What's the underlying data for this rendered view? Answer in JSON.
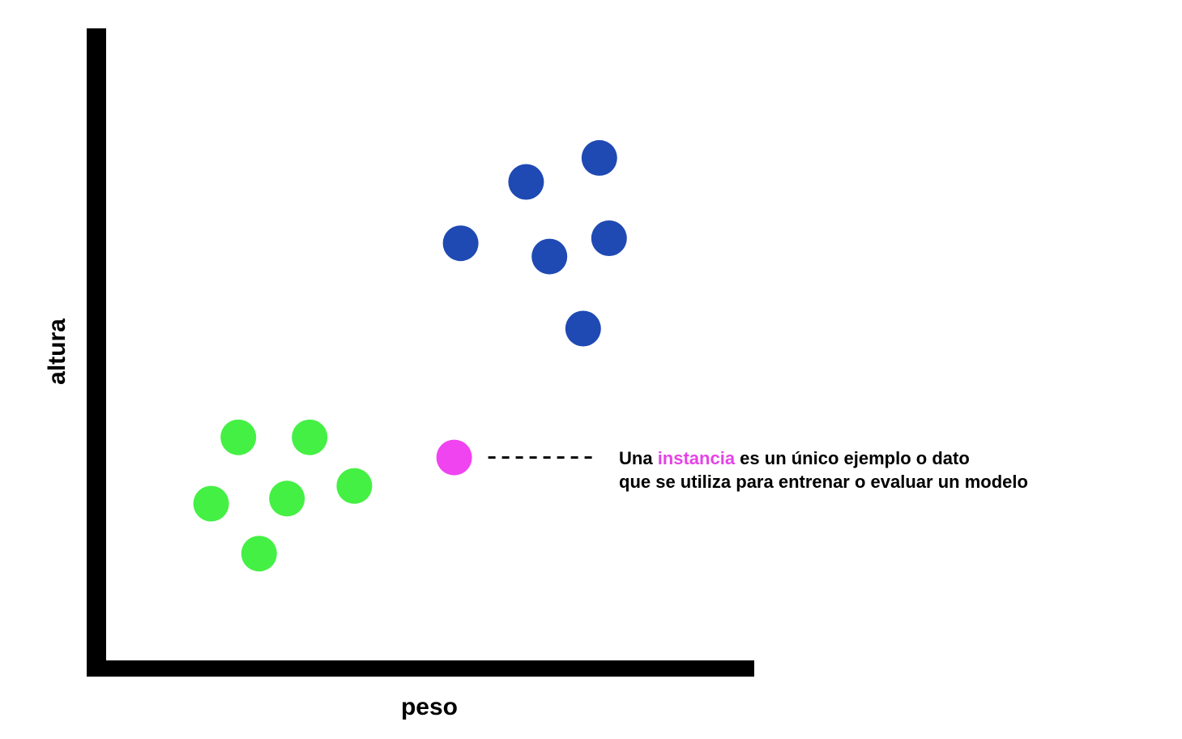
{
  "chart_data": {
    "type": "scatter",
    "xlabel": "peso",
    "ylabel": "altura",
    "xlim": [
      0,
      100
    ],
    "ylim": [
      0,
      100
    ],
    "grid": false,
    "series": [
      {
        "color": "#1f4ab3",
        "points": [
          {
            "x": 54.7,
            "y": 66.0
          },
          {
            "x": 64.8,
            "y": 75.7
          },
          {
            "x": 76.1,
            "y": 79.5
          },
          {
            "x": 77.6,
            "y": 66.8
          },
          {
            "x": 68.4,
            "y": 63.9
          },
          {
            "x": 73.6,
            "y": 52.5
          }
        ]
      },
      {
        "color": "#44f044",
        "points": [
          {
            "x": 20.4,
            "y": 35.3
          },
          {
            "x": 31.4,
            "y": 35.3
          },
          {
            "x": 16.2,
            "y": 24.8
          },
          {
            "x": 27.9,
            "y": 25.6
          },
          {
            "x": 38.3,
            "y": 27.6
          },
          {
            "x": 23.6,
            "y": 16.9
          }
        ]
      },
      {
        "color": "#f044f0",
        "points": [
          {
            "x": 53.7,
            "y": 32.1
          }
        ]
      }
    ],
    "annotation": {
      "text_parts": [
        {
          "text": "Una ",
          "color": "#000000"
        },
        {
          "text": "instancia",
          "color": "#e444e6"
        },
        {
          "text": " es un único ejemplo o dato",
          "color": "#000000"
        }
      ],
      "line2": "que se utiliza para entrenar o evaluar un modelo",
      "points_to": {
        "x": 53.7,
        "y": 32.1
      }
    }
  }
}
